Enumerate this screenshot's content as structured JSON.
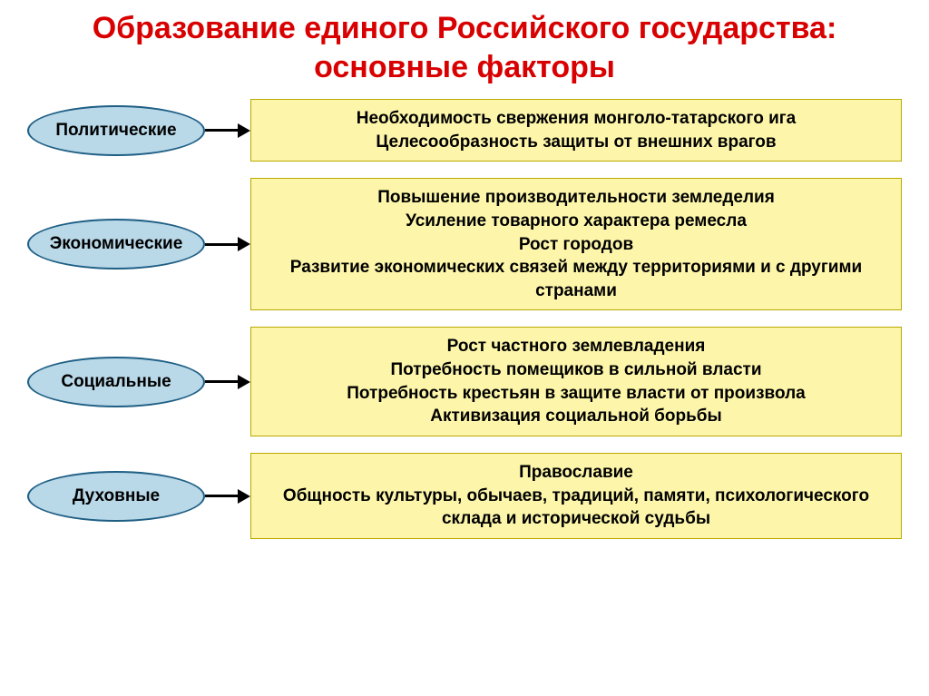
{
  "title": {
    "text": "Образование единого Российского государства: основные факторы",
    "color": "#d80000",
    "fontsize": 34
  },
  "colors": {
    "ellipse_fill": "#b9d8e8",
    "ellipse_border": "#1f5f85",
    "ellipse_text": "#000000",
    "box_fill": "#fdf6aa",
    "box_border": "#b9a800",
    "box_text": "#000000",
    "arrow": "#000000",
    "background": "#ffffff"
  },
  "layout": {
    "ellipse_width": 196,
    "ellipse_height": 56,
    "ellipse_fontsize": 19,
    "box_fontsize": 19,
    "arrow_line_width": 36,
    "row_gap": 18
  },
  "rows": [
    {
      "label": "Политические",
      "lines": [
        "Необходимость свержения монголо-татарского  ига",
        "Целесообразность защиты от внешних врагов"
      ]
    },
    {
      "label": "Экономические",
      "lines": [
        "Повышение производительности земледелия",
        "Усиление товарного характера ремесла",
        "Рост городов",
        "Развитие экономических связей между территориями и с другими странами"
      ]
    },
    {
      "label": "Социальные",
      "lines": [
        "Рост частного землевладения",
        "Потребность помещиков в сильной власти",
        "Потребность крестьян в защите власти от произвола",
        "Активизация социальной борьбы"
      ]
    },
    {
      "label": "Духовные",
      "lines": [
        "Православие",
        "Общность культуры, обычаев, традиций, памяти, психологического склада и исторической судьбы"
      ]
    }
  ]
}
